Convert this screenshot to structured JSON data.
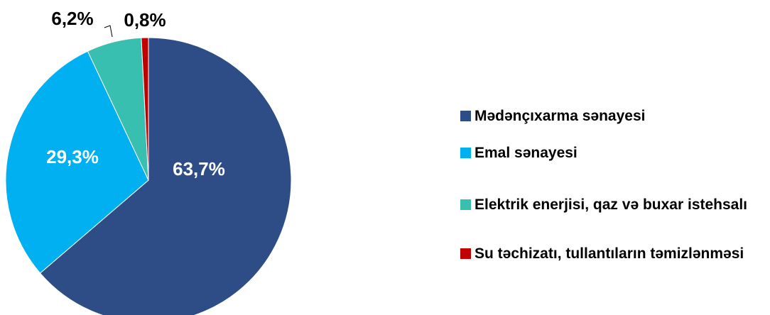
{
  "chart_data": {
    "type": "pie",
    "categories": [
      "Mədənçıxarma sənayesi",
      "Emal sənayesi",
      "Elektrik enerjisi, qaz və buxar istehsalı",
      "Su təchizatı, tullantıların təmizlənməsi"
    ],
    "values": [
      63.7,
      29.3,
      6.2,
      0.8
    ],
    "value_labels": [
      "63,7%",
      "29,3%",
      "6,2%",
      "0,8%"
    ],
    "colors": [
      "#2e4d87",
      "#00b0f0",
      "#38bfaf",
      "#c00000"
    ],
    "legend": "right"
  }
}
